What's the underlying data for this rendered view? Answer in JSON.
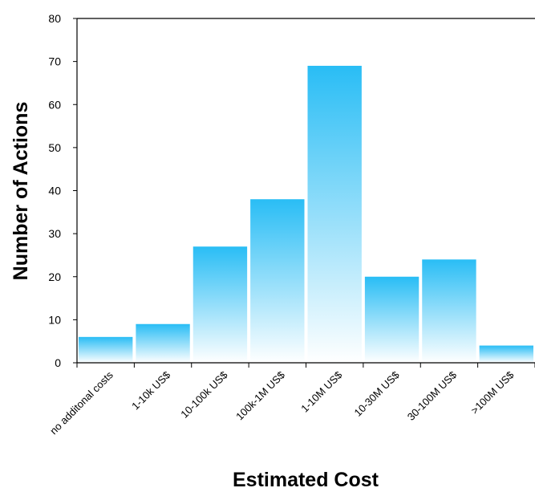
{
  "chart_data": {
    "type": "bar",
    "title": "",
    "xlabel": "Estimated Cost",
    "ylabel": "Number of Actions",
    "categories": [
      "no additonal costs",
      "1-10k US$",
      "10-100k US$",
      "100k-1M US$",
      "1-10M US$",
      "10-30M US$",
      "30-100M US$",
      ">100M US$"
    ],
    "values": [
      6,
      9,
      27,
      38,
      69,
      20,
      24,
      4
    ],
    "ylim": [
      0,
      80
    ],
    "yticks": [
      0,
      10,
      20,
      30,
      40,
      50,
      60,
      70,
      80
    ],
    "grid": false,
    "legend": "none",
    "colors": {
      "bar_top": "#29bdf5",
      "bar_bottom": "#ffffff",
      "axis": "#000000"
    }
  }
}
